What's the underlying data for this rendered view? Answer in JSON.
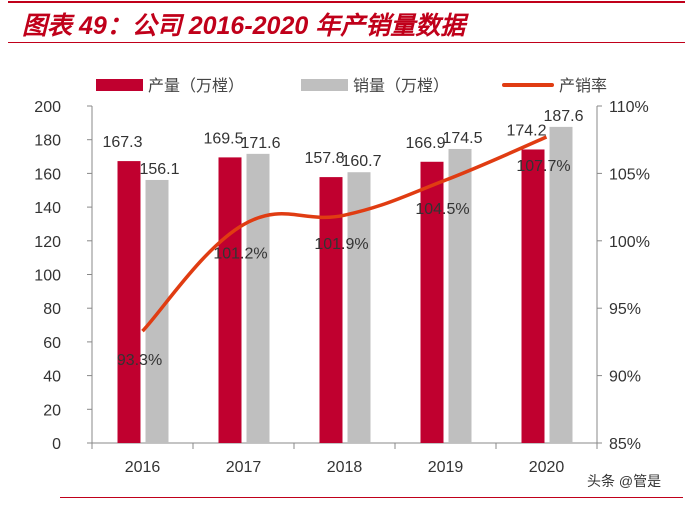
{
  "title": "图表 49：公司 2016-2020 年产销量数据",
  "watermark": "头条 @管是",
  "chart_data": {
    "type": "bar+line",
    "categories": [
      "2016",
      "2017",
      "2018",
      "2019",
      "2020"
    ],
    "series": [
      {
        "name": "产量（万樘）",
        "type": "bar",
        "axis": "left",
        "color": "#c0002f",
        "values": [
          167.3,
          169.5,
          157.8,
          166.9,
          174.2
        ],
        "labels": [
          "167.3",
          "169.5",
          "157.8",
          "166.9",
          "174.2"
        ]
      },
      {
        "name": "销量（万樘）",
        "type": "bar",
        "axis": "left",
        "color": "#bfbfbf",
        "values": [
          156.1,
          171.6,
          160.7,
          174.5,
          187.6
        ],
        "labels": [
          "156.1",
          "171.6",
          "160.7",
          "174.5",
          "187.6"
        ]
      },
      {
        "name": "产销率",
        "type": "line",
        "axis": "right",
        "color": "#e03c12",
        "values": [
          93.3,
          101.2,
          101.9,
          104.5,
          107.7
        ],
        "labels": [
          "93.3%",
          "101.2%",
          "101.9%",
          "104.5%",
          "107.7%"
        ]
      }
    ],
    "left_axis": {
      "ylim": [
        0,
        200
      ],
      "ticks": [
        "0",
        "20",
        "40",
        "60",
        "80",
        "100",
        "120",
        "140",
        "160",
        "180",
        "200"
      ]
    },
    "right_axis": {
      "ylim": [
        85,
        110
      ],
      "ticks": [
        "85%",
        "90%",
        "95%",
        "100%",
        "105%",
        "110%"
      ]
    },
    "legend": "top",
    "grid": false
  }
}
